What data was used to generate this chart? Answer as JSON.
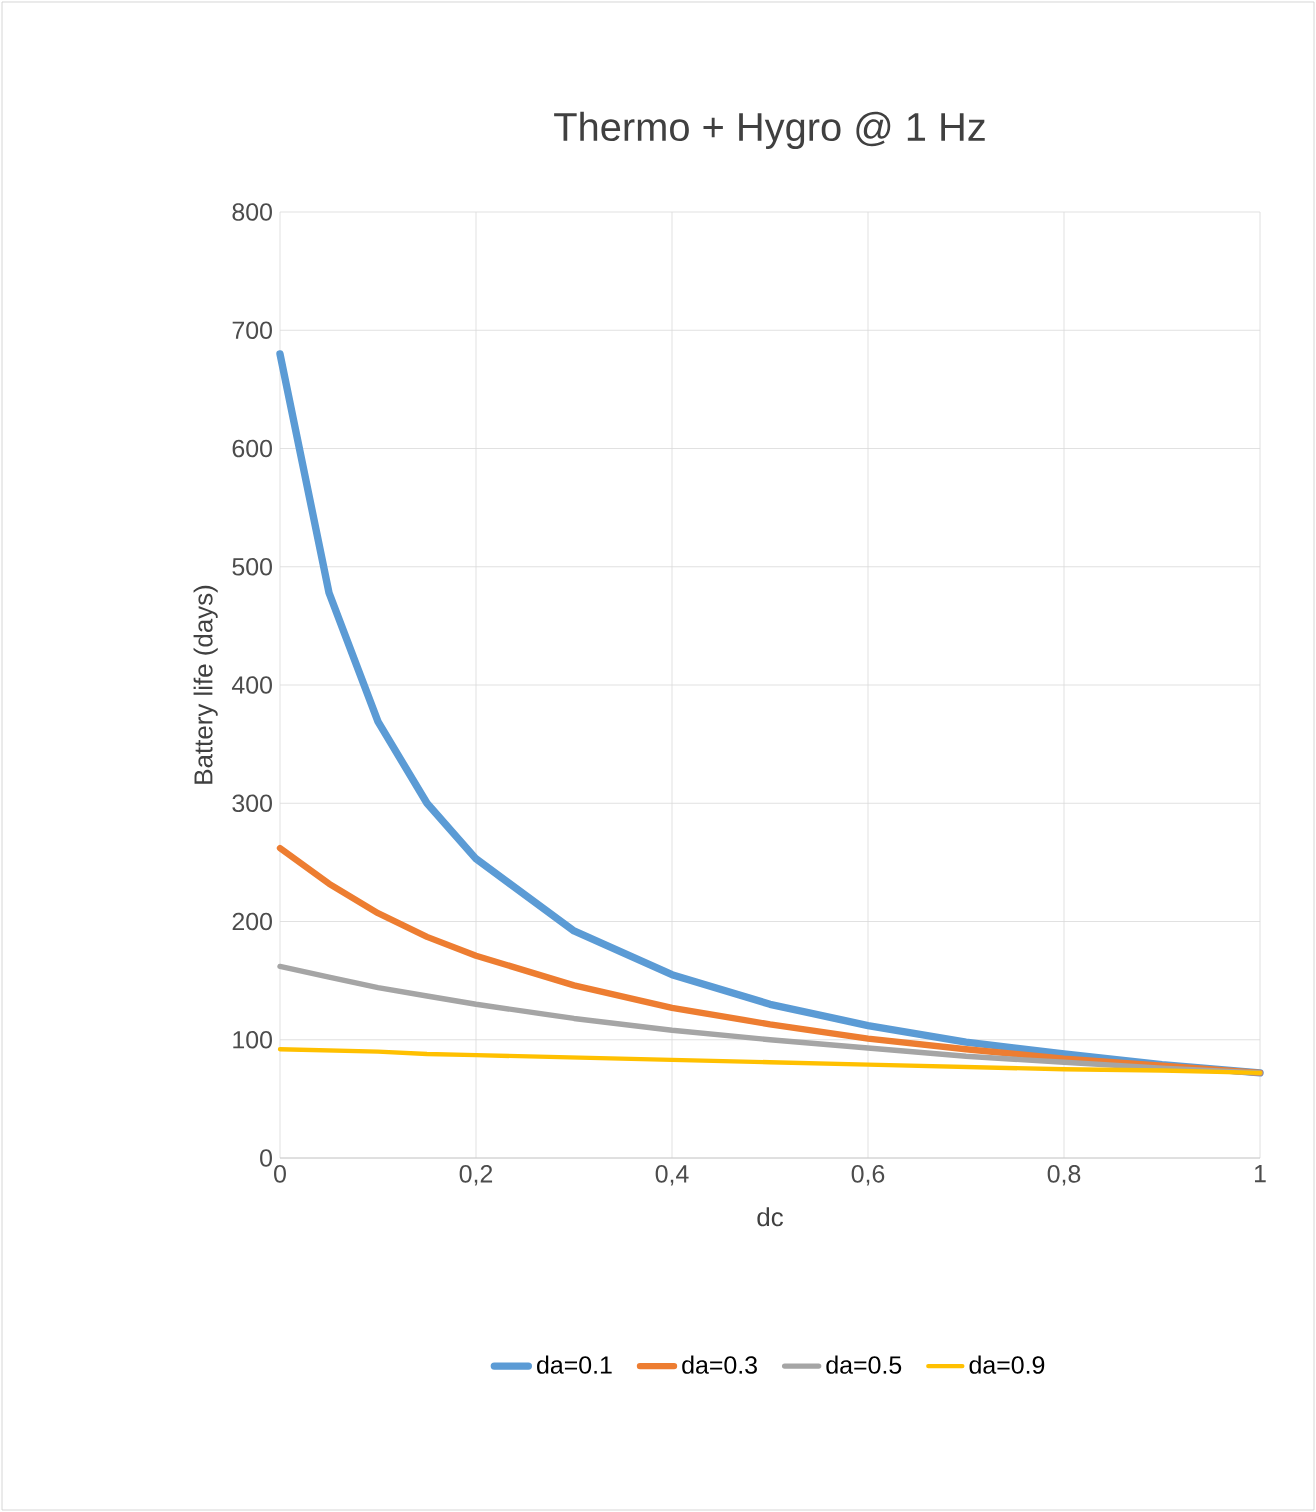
{
  "chart_data": {
    "type": "line",
    "title": "Thermo + Hygro @ 1 Hz",
    "xlabel": "dc",
    "ylabel": "Battery life (days)",
    "x": [
      0,
      0.05,
      0.1,
      0.15,
      0.2,
      0.3,
      0.4,
      0.5,
      0.6,
      0.7,
      0.8,
      0.9,
      1
    ],
    "series": [
      {
        "name": "da=0.1",
        "color": "#5b9bd5",
        "values": [
          680,
          478,
          369,
          300,
          253,
          192,
          155,
          130,
          112,
          98,
          88,
          79,
          72
        ]
      },
      {
        "name": "da=0.3",
        "color": "#ed7d31",
        "values": [
          262,
          232,
          207,
          187,
          171,
          146,
          127,
          113,
          101,
          92,
          84,
          78,
          72
        ]
      },
      {
        "name": "da=0.5",
        "color": "#a5a5a5",
        "values": [
          162,
          153,
          144,
          137,
          130,
          118,
          108,
          100,
          93,
          86,
          81,
          76,
          72
        ]
      },
      {
        "name": "da=0.9",
        "color": "#ffc000",
        "values": [
          92,
          91,
          90,
          88,
          87,
          85,
          83,
          81,
          79,
          77,
          75,
          74,
          72
        ]
      }
    ],
    "xlim": [
      0,
      1
    ],
    "ylim": [
      0,
      800
    ],
    "xticks": [
      0,
      {
        "value": 0.2,
        "label": "0,2"
      },
      {
        "value": 0.4,
        "label": "0,4"
      },
      {
        "value": 0.6,
        "label": "0,6"
      },
      {
        "value": 0.8,
        "label": "0,8"
      },
      1
    ],
    "yticks": [
      0,
      100,
      200,
      300,
      400,
      500,
      600,
      700,
      800
    ],
    "grid": true,
    "legend": "bottom",
    "marker": "none",
    "line_style": "solid"
  }
}
